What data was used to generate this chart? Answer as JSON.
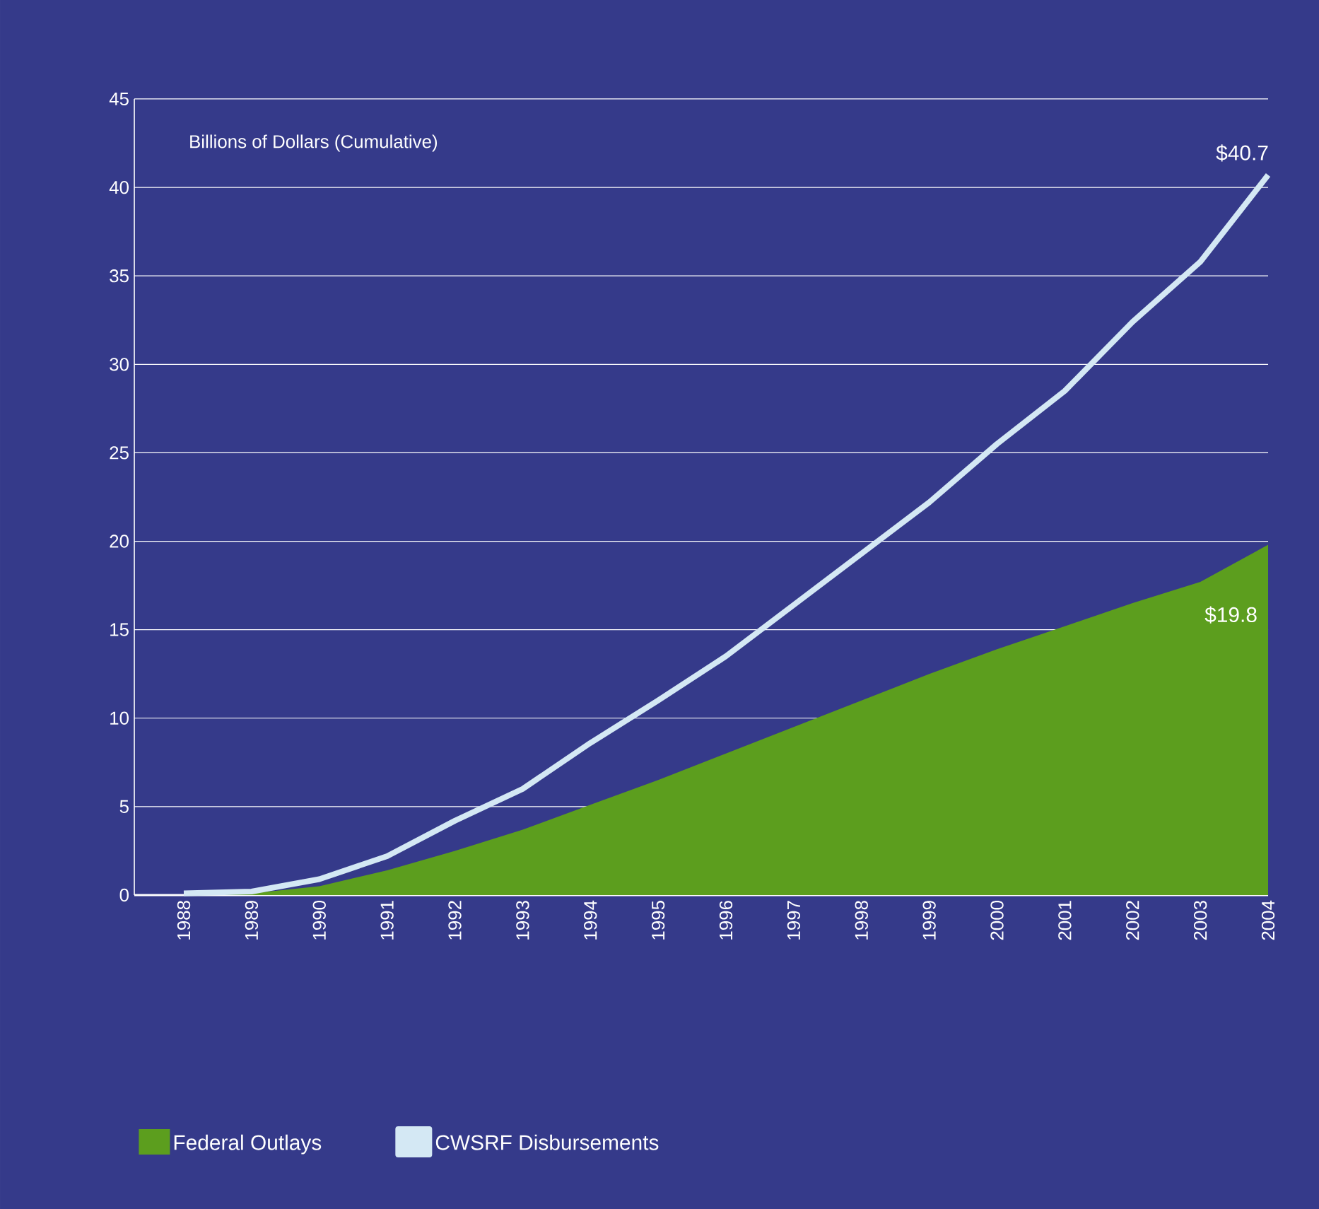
{
  "chart_data": {
    "type": "area",
    "ylabel": "Billions of Dollars (Cumulative)",
    "categories": [
      "1988",
      "1989",
      "1990",
      "1991",
      "1992",
      "1993",
      "1994",
      "1995",
      "1996",
      "1997",
      "1998",
      "1999",
      "2000",
      "2001",
      "2002",
      "2003",
      "2004"
    ],
    "series": [
      {
        "name": "Federal Outlays",
        "color": "#5c9e1e",
        "values": [
          0,
          0.1,
          0.5,
          1.4,
          2.5,
          3.7,
          5.1,
          6.5,
          8.0,
          9.5,
          11.0,
          12.5,
          13.9,
          15.2,
          16.5,
          17.7,
          19.8
        ]
      },
      {
        "name": "CWSRF Disbursements",
        "type": "line",
        "color": "#d4e8f4",
        "values": [
          0.1,
          0.2,
          0.9,
          2.2,
          4.2,
          6.0,
          8.6,
          11.0,
          13.5,
          16.4,
          19.3,
          22.2,
          25.5,
          28.5,
          32.4,
          35.8,
          40.7
        ]
      }
    ],
    "ylim": [
      0,
      45
    ],
    "yticks": [
      0,
      5,
      10,
      15,
      20,
      25,
      30,
      35,
      40,
      45
    ],
    "grid": "y",
    "legend": "bottom",
    "marker": "none",
    "annotations": [
      {
        "text": "$40.7",
        "x": "2004",
        "y": 40.7
      },
      {
        "text": "$19.8",
        "x": "2004",
        "y": 19.8
      }
    ]
  }
}
